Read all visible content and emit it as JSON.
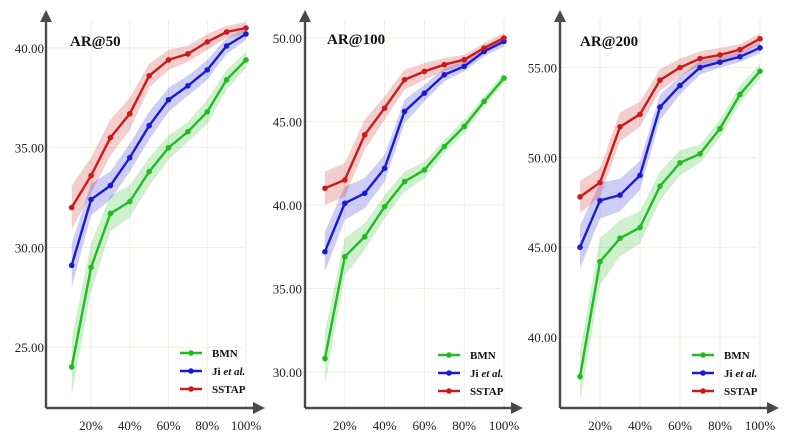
{
  "chart_data": [
    {
      "type": "line",
      "title": "AR@50",
      "xlabel": "",
      "ylabel": "",
      "x": [
        10,
        20,
        30,
        40,
        50,
        60,
        70,
        80,
        90,
        100
      ],
      "xticks": [
        "20%",
        "40%",
        "60%",
        "80%",
        "100%"
      ],
      "xtick_values": [
        20,
        40,
        60,
        80,
        100
      ],
      "xlim": [
        5,
        100
      ],
      "ylim": [
        22.5,
        41.5
      ],
      "yticks": [
        "25.00",
        "30.00",
        "35.00",
        "40.00"
      ],
      "ytick_values": [
        25,
        30,
        35,
        40
      ],
      "grid": true,
      "legend_position": "bottom-right",
      "series": [
        {
          "name": "BMN",
          "color": "#22bb22",
          "values": [
            24.0,
            29.0,
            31.7,
            32.3,
            33.8,
            35.0,
            35.8,
            36.8,
            38.4,
            39.4
          ],
          "band": [
            1.4,
            1.2,
            0.9,
            0.8,
            0.7,
            0.6,
            0.5,
            0.6,
            0.5,
            0.4
          ]
        },
        {
          "name": "Ji et al.",
          "name_main": "Ji ",
          "name_italic": "et al.",
          "color": "#1a1ad6",
          "values": [
            29.1,
            32.4,
            33.1,
            34.5,
            36.1,
            37.4,
            38.1,
            38.9,
            40.1,
            40.7
          ],
          "band": [
            1.1,
            0.8,
            0.7,
            0.7,
            0.7,
            0.6,
            0.5,
            0.5,
            0.4,
            0.3
          ]
        },
        {
          "name": "SSTAP",
          "color": "#cc1a1a",
          "values": [
            32.0,
            33.6,
            35.5,
            36.7,
            38.6,
            39.4,
            39.7,
            40.3,
            40.8,
            41.0
          ],
          "band": [
            1.1,
            0.9,
            0.9,
            0.8,
            0.6,
            0.5,
            0.4,
            0.4,
            0.3,
            0.3
          ]
        }
      ]
    },
    {
      "type": "line",
      "title": "AR@100",
      "xlabel": "",
      "ylabel": "",
      "x": [
        10,
        20,
        30,
        40,
        50,
        60,
        70,
        80,
        90,
        100
      ],
      "xticks": [
        "20%",
        "40%",
        "60%",
        "80%",
        "100%"
      ],
      "xtick_values": [
        20,
        40,
        60,
        80,
        100
      ],
      "xlim": [
        5,
        100
      ],
      "ylim": [
        28.5,
        50.6
      ],
      "yticks": [
        "30.00",
        "35.00",
        "40.00",
        "45.00",
        "50.00"
      ],
      "ytick_values": [
        30,
        35,
        40,
        45,
        50
      ],
      "grid": true,
      "legend_position": "bottom-right",
      "series": [
        {
          "name": "BMN",
          "color": "#22bb22",
          "values": [
            30.8,
            36.9,
            38.1,
            39.9,
            41.4,
            42.1,
            43.5,
            44.7,
            46.2,
            47.6
          ],
          "band": [
            1.6,
            1.1,
            0.8,
            0.7,
            0.6,
            0.5,
            0.4,
            0.4,
            0.3,
            0.3
          ]
        },
        {
          "name": "Ji et al.",
          "name_main": "Ji ",
          "name_italic": "et al.",
          "color": "#1a1ad6",
          "values": [
            37.2,
            40.1,
            40.7,
            42.2,
            45.6,
            46.7,
            47.8,
            48.3,
            49.2,
            49.8
          ],
          "band": [
            1.2,
            1.0,
            0.9,
            0.8,
            0.7,
            0.5,
            0.4,
            0.3,
            0.3,
            0.3
          ]
        },
        {
          "name": "SSTAP",
          "color": "#cc1a1a",
          "values": [
            41.0,
            41.5,
            44.2,
            45.8,
            47.5,
            48.0,
            48.4,
            48.7,
            49.4,
            50.0
          ],
          "band": [
            1.0,
            1.0,
            0.9,
            0.7,
            0.6,
            0.5,
            0.4,
            0.3,
            0.3,
            0.3
          ]
        }
      ]
    },
    {
      "type": "line",
      "title": "AR@200",
      "xlabel": "",
      "ylabel": "",
      "x": [
        10,
        20,
        30,
        40,
        50,
        60,
        70,
        80,
        90,
        100
      ],
      "xticks": [
        "20%",
        "40%",
        "60%",
        "80%",
        "100%"
      ],
      "xtick_values": [
        20,
        40,
        60,
        80,
        100
      ],
      "xlim": [
        5,
        100
      ],
      "ylim": [
        36.5,
        57.2
      ],
      "yticks": [
        "40.00",
        "45.00",
        "50.00",
        "55.00"
      ],
      "ytick_values": [
        40,
        45,
        50,
        55
      ],
      "grid": true,
      "legend_position": "bottom-right",
      "series": [
        {
          "name": "BMN",
          "color": "#22bb22",
          "values": [
            37.8,
            44.2,
            45.5,
            46.1,
            48.4,
            49.7,
            50.2,
            51.6,
            53.5,
            54.8
          ],
          "band": [
            1.4,
            1.3,
            1.0,
            0.9,
            0.8,
            0.7,
            0.5,
            0.5,
            0.5,
            0.4
          ]
        },
        {
          "name": "Ji et al.",
          "name_main": "Ji ",
          "name_italic": "et al.",
          "color": "#1a1ad6",
          "values": [
            45.0,
            47.6,
            47.9,
            49.0,
            52.8,
            54.0,
            55.0,
            55.3,
            55.6,
            56.1
          ],
          "band": [
            1.2,
            1.0,
            0.9,
            0.8,
            0.7,
            0.5,
            0.4,
            0.3,
            0.3,
            0.3
          ]
        },
        {
          "name": "SSTAP",
          "color": "#cc1a1a",
          "values": [
            47.8,
            48.6,
            51.7,
            52.4,
            54.3,
            55.0,
            55.5,
            55.7,
            56.0,
            56.6
          ],
          "band": [
            0.9,
            0.8,
            0.8,
            0.7,
            0.6,
            0.5,
            0.4,
            0.4,
            0.3,
            0.3
          ]
        }
      ]
    }
  ]
}
